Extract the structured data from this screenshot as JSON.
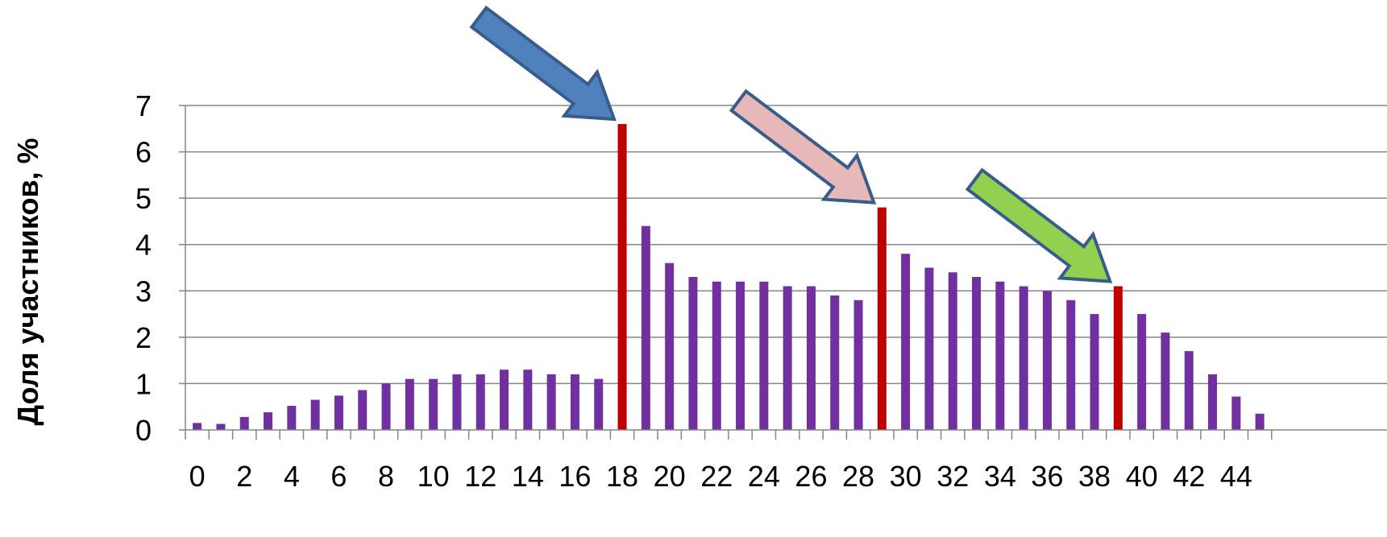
{
  "chart_data": {
    "type": "bar",
    "ylabel": "Доля участников, %",
    "xlabel": "",
    "title": "",
    "ylim": [
      0,
      7
    ],
    "y_ticks": [
      "0",
      "1",
      "2",
      "3",
      "4",
      "5",
      "6",
      "7"
    ],
    "x_ticks": [
      "0",
      "2",
      "4",
      "6",
      "8",
      "10",
      "12",
      "14",
      "16",
      "18",
      "20",
      "22",
      "24",
      "26",
      "28",
      "30",
      "32",
      "34",
      "36",
      "38",
      "40",
      "42",
      "44"
    ],
    "grid": true,
    "legend": "none",
    "x": [
      0,
      1,
      2,
      3,
      4,
      5,
      6,
      7,
      8,
      9,
      10,
      11,
      12,
      13,
      14,
      15,
      16,
      17,
      18,
      19,
      20,
      21,
      22,
      23,
      24,
      25,
      26,
      27,
      28,
      29,
      30,
      31,
      32,
      33,
      34,
      35,
      36,
      37,
      38,
      39,
      40,
      41,
      42,
      43,
      44,
      45
    ],
    "values": [
      0.15,
      0.13,
      0.28,
      0.38,
      0.52,
      0.65,
      0.74,
      0.86,
      1.0,
      1.1,
      1.1,
      1.2,
      1.2,
      1.3,
      1.3,
      1.2,
      1.2,
      1.1,
      6.6,
      4.4,
      3.6,
      3.3,
      3.2,
      3.2,
      3.2,
      3.1,
      3.1,
      2.9,
      2.8,
      4.8,
      3.8,
      3.5,
      3.4,
      3.3,
      3.2,
      3.1,
      3.0,
      2.8,
      2.5,
      3.1,
      2.5,
      2.1,
      1.7,
      1.2,
      0.72,
      0.35
    ],
    "highlighted_x": [
      18,
      29,
      39
    ],
    "colors": {
      "bar": "#7030A0",
      "highlight": "#C00000",
      "grid": "#868686"
    },
    "annotations": [
      {
        "type": "arrow",
        "points_to_x": 18,
        "fill": "#4F81BD",
        "stroke": "#385D8A"
      },
      {
        "type": "arrow",
        "points_to_x": 29,
        "fill": "#E6B9B8",
        "stroke": "#385D8A"
      },
      {
        "type": "arrow",
        "points_to_x": 39,
        "fill": "#92D050",
        "stroke": "#385D8A"
      }
    ]
  }
}
